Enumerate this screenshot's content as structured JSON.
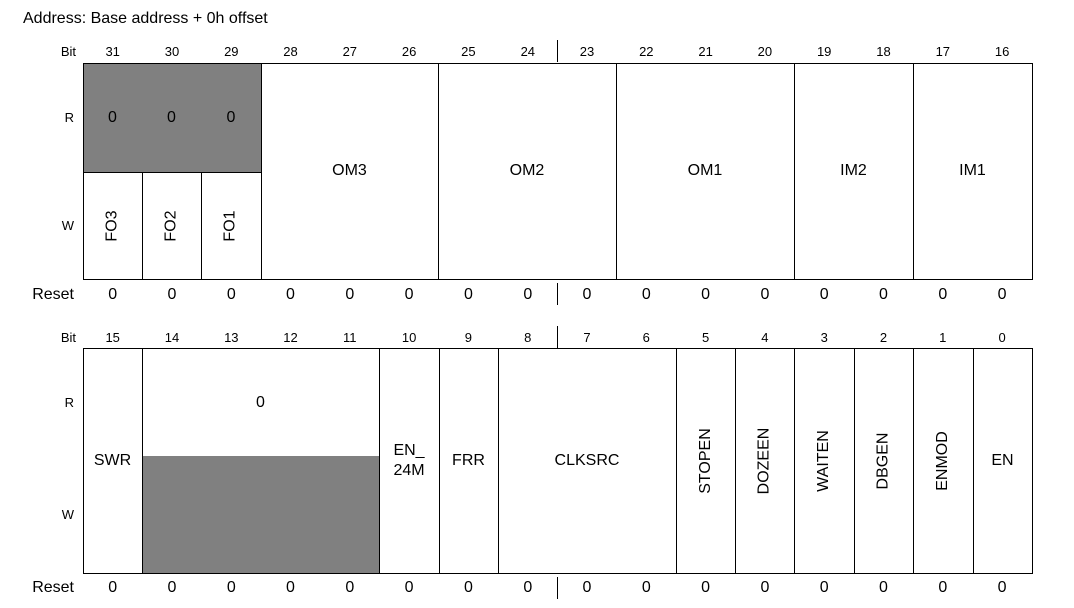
{
  "title": "Address: Base address + 0h offset",
  "labels": {
    "bit": "Bit",
    "r": "R",
    "w": "W",
    "reset": "Reset"
  },
  "upper": {
    "bits": [
      "31",
      "30",
      "29",
      "28",
      "27",
      "26",
      "25",
      "24",
      "23",
      "22",
      "21",
      "20",
      "19",
      "18",
      "17",
      "16"
    ],
    "read_values": [
      "0",
      "0",
      "0"
    ],
    "write_fields": [
      "FO3",
      "FO2",
      "FO1"
    ],
    "fields": [
      "OM3",
      "OM2",
      "OM1",
      "IM2",
      "IM1"
    ],
    "reset": [
      "0",
      "0",
      "0",
      "0",
      "0",
      "0",
      "0",
      "0",
      "0",
      "0",
      "0",
      "0",
      "0",
      "0",
      "0",
      "0"
    ]
  },
  "lower": {
    "bits": [
      "15",
      "14",
      "13",
      "12",
      "11",
      "10",
      "9",
      "8",
      "7",
      "6",
      "5",
      "4",
      "3",
      "2",
      "1",
      "0"
    ],
    "reserved_value": "0",
    "fields": {
      "swr": "SWR",
      "en_24m": "EN_\n24M",
      "frr": "FRR",
      "clksrc": "CLKSRC",
      "stopen": "STOPEN",
      "dozeen": "DOZEEN",
      "waiten": "WAITEN",
      "dbgen": "DBGEN",
      "enmod": "ENMOD",
      "en": "EN"
    },
    "reset": [
      "0",
      "0",
      "0",
      "0",
      "0",
      "0",
      "0",
      "0",
      "0",
      "0",
      "0",
      "0",
      "0",
      "0",
      "0",
      "0"
    ]
  }
}
